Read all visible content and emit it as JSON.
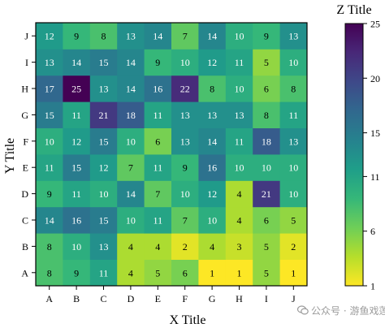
{
  "chart_data": {
    "type": "heatmap",
    "xlabel": "X Title",
    "ylabel": "Y Title",
    "colorbar_title": "Z Title",
    "x_categories": [
      "A",
      "B",
      "C",
      "D",
      "E",
      "F",
      "G",
      "H",
      "I",
      "J"
    ],
    "y_categories": [
      "A",
      "B",
      "C",
      "D",
      "E",
      "F",
      "G",
      "H",
      "I",
      "J"
    ],
    "z": [
      [
        8,
        9,
        11,
        4,
        5,
        6,
        1,
        1,
        5,
        1
      ],
      [
        8,
        10,
        13,
        4,
        4,
        2,
        4,
        3,
        5,
        2
      ],
      [
        14,
        16,
        15,
        10,
        11,
        7,
        10,
        4,
        6,
        5
      ],
      [
        9,
        11,
        10,
        14,
        7,
        10,
        12,
        4,
        21,
        10
      ],
      [
        11,
        15,
        12,
        7,
        11,
        9,
        16,
        10,
        10,
        10
      ],
      [
        10,
        12,
        15,
        10,
        6,
        13,
        14,
        11,
        18,
        13
      ],
      [
        15,
        11,
        21,
        18,
        11,
        13,
        13,
        13,
        8,
        11
      ],
      [
        17,
        25,
        13,
        14,
        16,
        22,
        8,
        10,
        6,
        8
      ],
      [
        13,
        14,
        15,
        14,
        9,
        10,
        12,
        11,
        5,
        10
      ],
      [
        12,
        9,
        8,
        13,
        14,
        7,
        14,
        10,
        9,
        13
      ]
    ],
    "zlim": [
      1,
      25
    ],
    "colorbar_ticks": [
      1,
      6,
      11,
      15,
      20,
      25
    ],
    "colormap": "viridis (reversed)",
    "grid": false,
    "legend": "colorbar right"
  },
  "watermark": {
    "text": "公众号 · 游鱼戏莲",
    "icon": "wechat-icon"
  }
}
